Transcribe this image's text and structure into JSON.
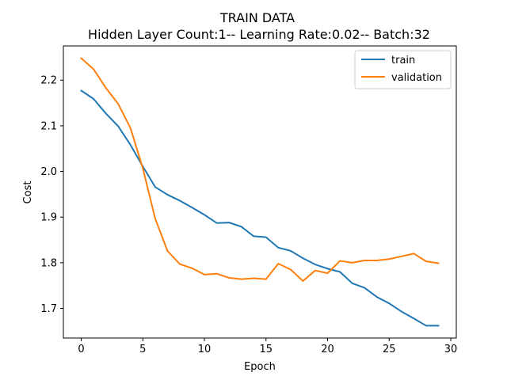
{
  "chart_data": {
    "type": "line",
    "title": "TRAIN DATA",
    "subtitle": "Hidden Layer Count:1-- Learning Rate:0.02-- Batch:32",
    "xlabel": "Epoch",
    "ylabel": "Cost",
    "xlim": [
      -1.45,
      30.45
    ],
    "ylim": [
      1.635,
      2.275
    ],
    "xticks": [
      0,
      5,
      10,
      15,
      20,
      25,
      30
    ],
    "xtick_labels": [
      "0",
      "5",
      "10",
      "15",
      "20",
      "25",
      "30"
    ],
    "yticks": [
      1.7,
      1.8,
      1.9,
      2.0,
      2.1,
      2.2
    ],
    "ytick_labels": [
      "1.7",
      "1.8",
      "1.9",
      "2.0",
      "2.1",
      "2.2"
    ],
    "grid": false,
    "legend_position": "top-right",
    "x": [
      0,
      1,
      2,
      3,
      4,
      5,
      6,
      7,
      8,
      9,
      10,
      11,
      12,
      13,
      14,
      15,
      16,
      17,
      18,
      19,
      20,
      21,
      22,
      23,
      24,
      25,
      26,
      27,
      28,
      29
    ],
    "series": [
      {
        "name": "train",
        "color": "#1f77b4",
        "values": [
          2.177,
          2.159,
          2.127,
          2.099,
          2.058,
          2.011,
          1.966,
          1.949,
          1.936,
          1.921,
          1.905,
          1.887,
          1.888,
          1.879,
          1.858,
          1.856,
          1.833,
          1.826,
          1.81,
          1.796,
          1.787,
          1.78,
          1.755,
          1.745,
          1.725,
          1.711,
          1.693,
          1.678,
          1.662,
          1.662
        ]
      },
      {
        "name": "validation",
        "color": "#ff7f0e",
        "values": [
          2.248,
          2.224,
          2.183,
          2.148,
          2.095,
          2.007,
          1.897,
          1.826,
          1.797,
          1.788,
          1.774,
          1.776,
          1.767,
          1.764,
          1.766,
          1.764,
          1.798,
          1.785,
          1.76,
          1.783,
          1.777,
          1.804,
          1.8,
          1.805,
          1.805,
          1.808,
          1.814,
          1.82,
          1.803,
          1.799
        ]
      }
    ]
  }
}
